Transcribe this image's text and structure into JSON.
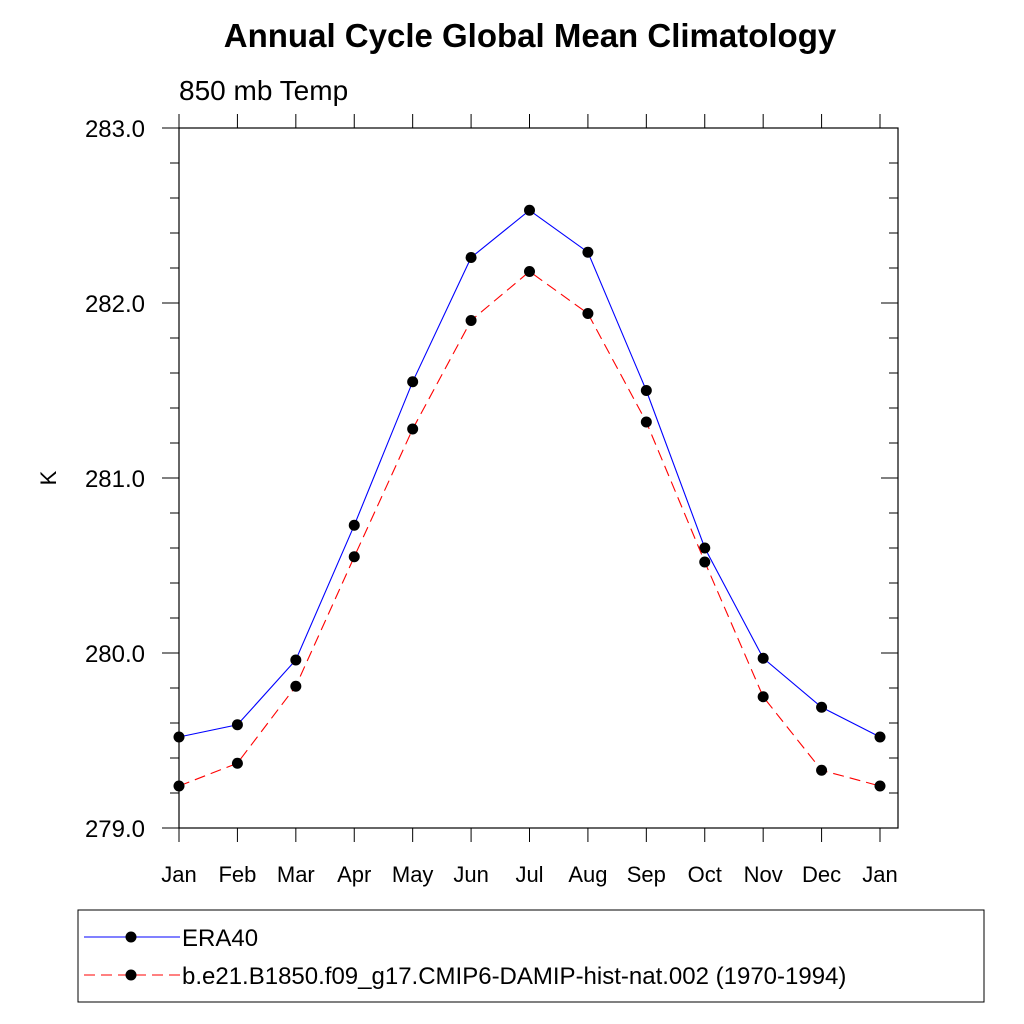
{
  "chart_data": {
    "type": "line",
    "title": "Annual Cycle Global Mean Climatology",
    "subtitle": "850 mb Temp",
    "xlabel": "",
    "ylabel": "K",
    "categories": [
      "Jan",
      "Feb",
      "Mar",
      "Apr",
      "May",
      "Jun",
      "Jul",
      "Aug",
      "Sep",
      "Oct",
      "Nov",
      "Dec",
      "Jan"
    ],
    "ylim": [
      279.0,
      283.0
    ],
    "yticks": [
      "279.0",
      "280.0",
      "281.0",
      "282.0",
      "283.0"
    ],
    "yminor_step": 0.2,
    "grid": false,
    "legend_placement": "bottom",
    "series": [
      {
        "name": "ERA40",
        "color": "#0000ff",
        "line_style": "solid",
        "marker": "filled-circle",
        "values": [
          279.52,
          279.59,
          279.96,
          280.73,
          281.55,
          282.26,
          282.53,
          282.29,
          281.5,
          280.6,
          279.97,
          279.69,
          279.52
        ]
      },
      {
        "name": "b.e21.B1850.f09_g17.CMIP6-DAMIP-hist-nat.002 (1970-1994)",
        "color": "#ff0000",
        "line_style": "dashed",
        "marker": "filled-circle",
        "values": [
          279.24,
          279.37,
          279.81,
          280.55,
          281.28,
          281.9,
          282.18,
          281.94,
          281.32,
          280.52,
          279.75,
          279.33,
          279.24
        ]
      }
    ]
  }
}
